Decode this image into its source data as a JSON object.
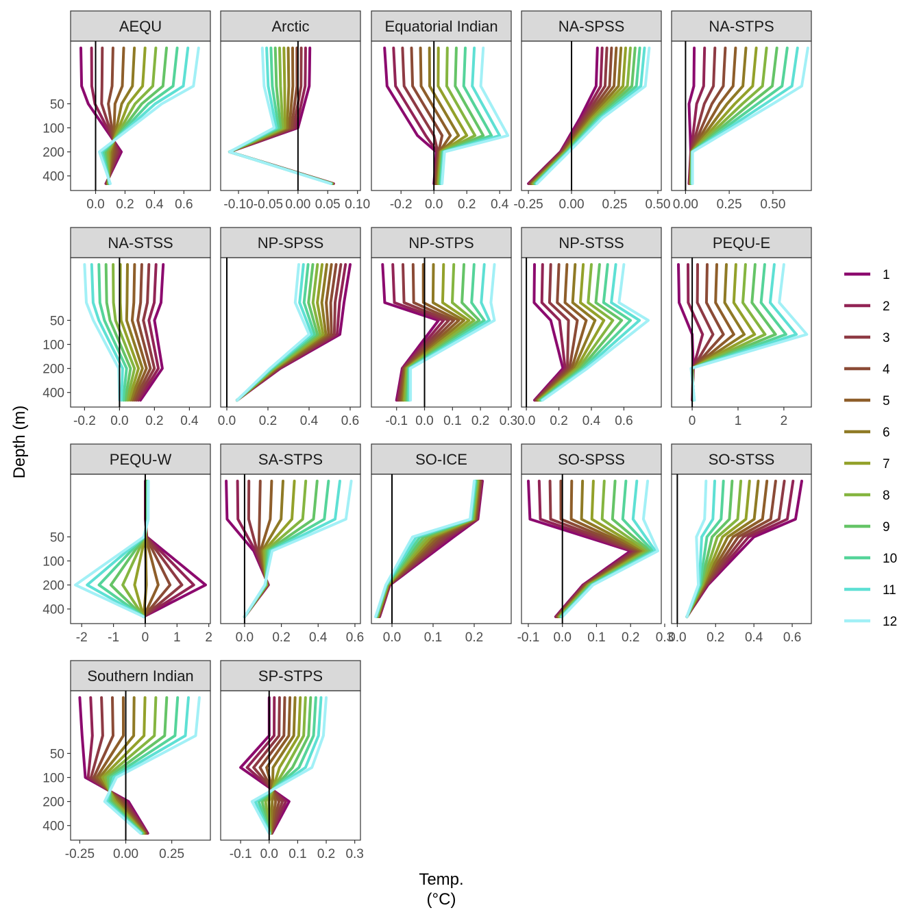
{
  "chart_data": {
    "type": "line",
    "xlabel": "Temp.",
    "xlabel_unit": "(°C)",
    "ylabel": "Depth (m)",
    "y_scale": "reversed-log",
    "y_ticks": [
      50,
      100,
      200,
      400
    ],
    "depths": [
      10,
      20,
      30,
      50,
      75,
      100,
      125,
      150,
      200,
      250,
      300,
      400,
      500
    ],
    "legend_title": "",
    "legend_position": "right",
    "series_names": [
      "1",
      "2",
      "3",
      "4",
      "5",
      "6",
      "7",
      "8",
      "9",
      "10",
      "11",
      "12"
    ],
    "colors": [
      "#8c0a6e",
      "#922455",
      "#8e3a44",
      "#8b4b36",
      "#8e5e2a",
      "#8f7a25",
      "#93a12a",
      "#85b540",
      "#65c467",
      "#55d49a",
      "#5ee0d4",
      "#a2f0f6"
    ],
    "panels": [
      {
        "title": "AEQU",
        "xlim": [
          -0.17,
          0.78
        ],
        "x_ticks": [
          0.0,
          0.2,
          0.4,
          0.6
        ],
        "x_tick_labels": [
          "0.0",
          "0.2",
          "0.4",
          "0.6"
        ],
        "surf": [
          -0.1,
          0.7
        ],
        "mid": [
          -0.05,
          0.45
        ],
        "mid_depth": 50,
        "deep": [
          0.15,
          0.05
        ],
        "deep_spread": 0.05,
        "floor": [
          0.07,
          0.1
        ]
      },
      {
        "title": "Arctic",
        "xlim": [
          -0.13,
          0.105
        ],
        "x_ticks": [
          -0.1,
          -0.05,
          0.0,
          0.05,
          0.1
        ],
        "x_tick_labels": [
          "-0.10",
          "-0.05",
          "0.00",
          "0.05",
          "0.10"
        ],
        "surf": [
          0.02,
          -0.06
        ],
        "mid": [
          0.0,
          -0.04
        ],
        "mid_depth": 100,
        "deep": [
          -0.12,
          -0.11
        ],
        "deep_spread": 0.01,
        "floor": [
          0.06,
          0.055
        ]
      },
      {
        "title": "Equatorial Indian",
        "xlim": [
          -0.38,
          0.47
        ],
        "x_ticks": [
          -0.2,
          0.0,
          0.2,
          0.4
        ],
        "x_tick_labels": [
          "-0.2",
          "0.0",
          "0.2",
          "0.4"
        ],
        "surf": [
          -0.3,
          0.3
        ],
        "mid": [
          -0.1,
          0.45
        ],
        "mid_depth": 125,
        "deep": [
          0.0,
          0.08
        ],
        "deep_spread": 0.03,
        "floor": [
          0.0,
          0.05
        ]
      },
      {
        "title": "NA-SPSS",
        "xlim": [
          -0.29,
          0.52
        ],
        "x_ticks": [
          -0.25,
          0.0,
          0.25,
          0.5
        ],
        "x_tick_labels": [
          "-0.25",
          "0.00",
          "0.25",
          "0.50"
        ],
        "surf": [
          0.15,
          0.45
        ],
        "mid": [
          0.05,
          0.18
        ],
        "mid_depth": 75,
        "deep": [
          -0.08,
          0.0
        ],
        "deep_spread": 0.03,
        "floor": [
          -0.25,
          -0.2
        ]
      },
      {
        "title": "NA-STPS",
        "xlim": [
          -0.08,
          0.72
        ],
        "x_ticks": [
          0.0,
          0.25,
          0.5
        ],
        "x_tick_labels": [
          "0.00",
          "0.25",
          "0.50"
        ],
        "surf": [
          0.05,
          0.7
        ],
        "mid": [
          0.02,
          0.5
        ],
        "mid_depth": 50,
        "deep": [
          0.02,
          0.05
        ],
        "deep_spread": 0.02,
        "floor": [
          0.02,
          0.04
        ]
      },
      {
        "title": "NA-STSS",
        "xlim": [
          -0.28,
          0.52
        ],
        "x_ticks": [
          -0.2,
          0.0,
          0.2,
          0.4
        ],
        "x_tick_labels": [
          "-0.2",
          "0.0",
          "0.2",
          "0.4"
        ],
        "surf": [
          0.25,
          -0.2
        ],
        "mid": [
          0.2,
          -0.15
        ],
        "mid_depth": 50,
        "deep": [
          0.22,
          0.02
        ],
        "deep_spread": 0.05,
        "floor": [
          0.12,
          0.0
        ]
      },
      {
        "title": "NP-SPSS",
        "xlim": [
          -0.03,
          0.65
        ],
        "x_ticks": [
          0.0,
          0.2,
          0.4,
          0.6
        ],
        "x_tick_labels": [
          "0.0",
          "0.2",
          "0.4",
          "0.6"
        ],
        "surf": [
          0.6,
          0.35
        ],
        "mid": [
          0.55,
          0.4
        ],
        "mid_depth": 75,
        "deep": [
          0.25,
          0.22
        ],
        "deep_spread": 0.02,
        "floor": [
          0.05,
          0.05
        ]
      },
      {
        "title": "NP-STPS",
        "xlim": [
          -0.19,
          0.31
        ],
        "x_ticks": [
          -0.1,
          0.0,
          0.1,
          0.2,
          0.3
        ],
        "x_tick_labels": [
          "-0.1",
          "0.0",
          "0.1",
          "0.2",
          "0.3"
        ],
        "surf": [
          -0.15,
          0.25
        ],
        "mid": [
          0.05,
          0.25
        ],
        "mid_depth": 50,
        "deep": [
          -0.1,
          -0.03
        ],
        "deep_spread": 0.04,
        "floor": [
          -0.1,
          -0.05
        ]
      },
      {
        "title": "NP-STSS",
        "xlim": [
          -0.03,
          0.83
        ],
        "x_ticks": [
          0.0,
          0.2,
          0.4,
          0.6
        ],
        "x_tick_labels": [
          "0.0",
          "0.2",
          "0.4",
          "0.6"
        ],
        "surf": [
          0.05,
          0.6
        ],
        "mid": [
          0.15,
          0.75
        ],
        "mid_depth": 50,
        "deep": [
          0.2,
          0.4
        ],
        "deep_spread": 0.05,
        "floor": [
          0.05,
          0.1
        ]
      },
      {
        "title": "PEQU-E",
        "xlim": [
          -0.45,
          2.6
        ],
        "x_ticks": [
          0,
          1,
          2
        ],
        "x_tick_labels": [
          "0",
          "1",
          "2"
        ],
        "surf": [
          -0.3,
          2.0
        ],
        "mid": [
          0.0,
          2.5
        ],
        "mid_depth": 75,
        "deep": [
          0.0,
          0.0
        ],
        "deep_spread": 0.05,
        "floor": [
          0.0,
          0.05
        ]
      },
      {
        "title": "PEQU-W",
        "xlim": [
          -2.35,
          2.05
        ],
        "x_ticks": [
          -2,
          -1,
          0,
          1,
          2
        ],
        "x_tick_labels": [
          "-2",
          "-1",
          "0",
          "1",
          "2"
        ],
        "surf": [
          0.0,
          0.1
        ],
        "mid": [
          0.05,
          -0.05
        ],
        "mid_depth": 50,
        "deep": [
          1.9,
          -2.2
        ],
        "deep_spread": 0.0,
        "floor": [
          -0.05,
          -0.05
        ]
      },
      {
        "title": "SA-STPS",
        "xlim": [
          -0.13,
          0.63
        ],
        "x_ticks": [
          0.0,
          0.2,
          0.4,
          0.6
        ],
        "x_tick_labels": [
          "0.0",
          "0.2",
          "0.4",
          "0.6"
        ],
        "surf": [
          -0.1,
          0.58
        ],
        "mid": [
          0.05,
          0.15
        ],
        "mid_depth": 75,
        "deep": [
          0.12,
          0.12
        ],
        "deep_spread": 0.02,
        "floor": [
          0.0,
          0.0
        ]
      },
      {
        "title": "SO-ICE",
        "xlim": [
          -0.05,
          0.29
        ],
        "x_ticks": [
          0.0,
          0.1,
          0.2
        ],
        "x_tick_labels": [
          "0.0",
          "0.1",
          "0.2"
        ],
        "surf": [
          0.22,
          0.2
        ],
        "mid": [
          0.15,
          0.05
        ],
        "mid_depth": 50,
        "deep": [
          -0.01,
          -0.01
        ],
        "deep_spread": 0.01,
        "floor": [
          -0.03,
          -0.04
        ]
      },
      {
        "title": "SO-SPSS",
        "xlim": [
          -0.12,
          0.29
        ],
        "x_ticks": [
          -0.1,
          0.0,
          0.1,
          0.2,
          0.3
        ],
        "x_tick_labels": [
          "-0.1",
          "0.0",
          "0.1",
          "0.2",
          "0.3"
        ],
        "surf": [
          -0.1,
          0.25
        ],
        "mid": [
          0.2,
          0.28
        ],
        "mid_depth": 75,
        "deep": [
          0.05,
          0.1
        ],
        "deep_spread": 0.02,
        "floor": [
          -0.02,
          0.0
        ]
      },
      {
        "title": "SO-STSS",
        "xlim": [
          -0.03,
          0.7
        ],
        "x_ticks": [
          0.0,
          0.2,
          0.4,
          0.6
        ],
        "x_tick_labels": [
          "0.0",
          "0.2",
          "0.4",
          "0.6"
        ],
        "surf": [
          0.65,
          0.15
        ],
        "mid": [
          0.4,
          0.1
        ],
        "mid_depth": 50,
        "deep": [
          0.15,
          0.12
        ],
        "deep_spread": 0.02,
        "floor": [
          0.05,
          0.05
        ]
      },
      {
        "title": "Southern Indian",
        "xlim": [
          -0.3,
          0.46
        ],
        "x_ticks": [
          -0.25,
          0.0,
          0.25
        ],
        "x_tick_labels": [
          "-0.25",
          "0.00",
          "0.25"
        ],
        "surf": [
          -0.25,
          0.4
        ],
        "mid": [
          -0.22,
          -0.05
        ],
        "mid_depth": 100,
        "deep": [
          0.0,
          -0.1
        ],
        "deep_spread": 0.03,
        "floor": [
          0.12,
          0.08
        ]
      },
      {
        "title": "SP-STPS",
        "xlim": [
          -0.17,
          0.32
        ],
        "x_ticks": [
          -0.1,
          0.0,
          0.1,
          0.2,
          0.3
        ],
        "x_tick_labels": [
          "-0.1",
          "0.0",
          "0.1",
          "0.2",
          "0.3"
        ],
        "surf": [
          0.0,
          0.2
        ],
        "mid": [
          -0.1,
          0.15
        ],
        "mid_depth": 75,
        "deep": [
          0.06,
          -0.05
        ],
        "deep_spread": 0.02,
        "floor": [
          0.01,
          0.0
        ]
      }
    ]
  }
}
